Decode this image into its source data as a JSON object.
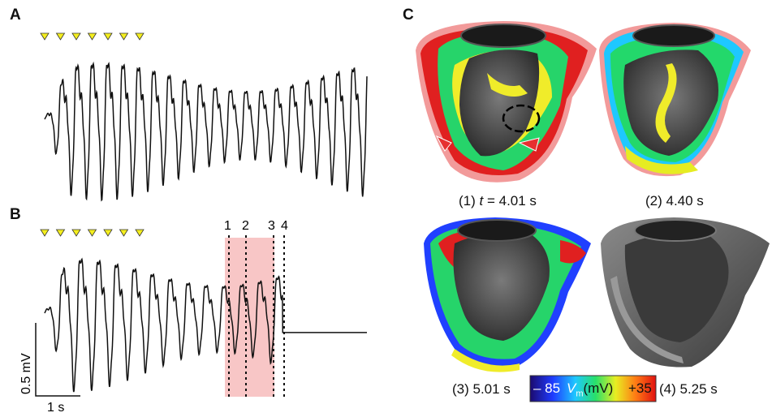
{
  "panels": {
    "a": {
      "letter": "A"
    },
    "b": {
      "letter": "B",
      "markers": [
        "1",
        "2",
        "3",
        "4"
      ],
      "scale_v": "0.5 mV",
      "scale_t": "1 s"
    },
    "c": {
      "letter": "C"
    }
  },
  "snapshots": [
    {
      "prefix": "(1) ",
      "t_var": "t",
      "t_eq": " = ",
      "time": "4.01 s"
    },
    {
      "prefix": "(2) ",
      "time": "4.40 s"
    },
    {
      "prefix": "(3) ",
      "time": "5.01 s"
    },
    {
      "prefix": "(4) ",
      "time": "5.25 s"
    }
  ],
  "colorbar": {
    "min": "– 85",
    "var": "V",
    "sub": "m",
    "unit": "(mV)",
    "max": "+35"
  },
  "colors": {
    "stim_marker": "#f4ee1e",
    "highlight": "#f8c6c6",
    "heart_rim": "#f08a8a"
  }
}
